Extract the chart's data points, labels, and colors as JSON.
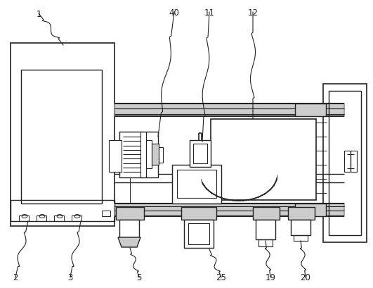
{
  "fig_width": 5.31,
  "fig_height": 4.1,
  "dpi": 100,
  "bg_color": "#ffffff",
  "lc": "#222222",
  "gc": "#999999",
  "lgc": "#cccccc"
}
